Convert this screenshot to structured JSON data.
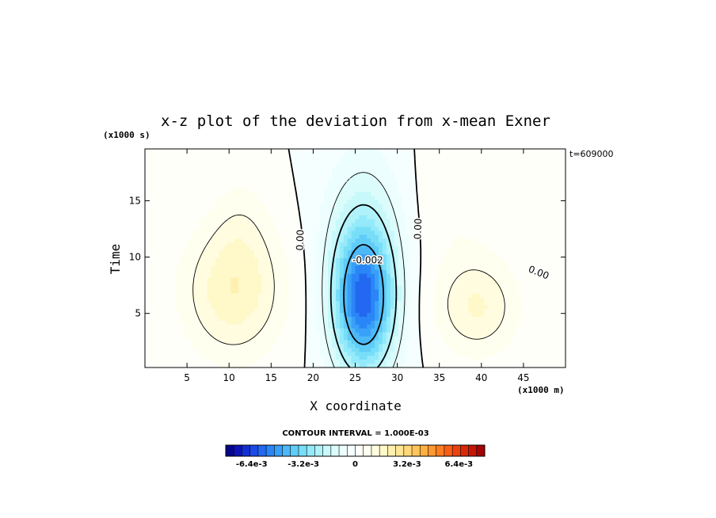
{
  "chart_data": {
    "type": "heatmap",
    "title": "x-z plot of the deviation from x-mean Exner",
    "xlabel": "X coordinate",
    "ylabel": "Time",
    "x_unit": "(x1000 m)",
    "y_unit": "(x1000 s)",
    "time_label": "t=609000",
    "xlim": [
      0,
      50
    ],
    "ylim": [
      0.2,
      19.6
    ],
    "x_ticks": [
      5,
      10,
      15,
      20,
      25,
      30,
      35,
      40,
      45
    ],
    "y_ticks": [
      5,
      10,
      15
    ],
    "contour_labels": [
      {
        "text": "0.00",
        "x": 18.5,
        "y": 11.5,
        "rotate": -88
      },
      {
        "text": "-0.002",
        "x": 26.5,
        "y": 9.7,
        "rotate": 0
      },
      {
        "text": "0.00",
        "x": 32.5,
        "y": 12.5,
        "rotate": -88
      },
      {
        "text": "0.00",
        "x": 46.8,
        "y": 8.6,
        "rotate": 22
      }
    ],
    "field_features": [
      {
        "name": "warm-left",
        "x": 10.5,
        "y": 7.0,
        "sx": 4.2,
        "sy": 4.2,
        "amp": 0.0019
      },
      {
        "name": "warm-left-upper",
        "x": 11.5,
        "y": 13.0,
        "sx": 2.5,
        "sy": 3.5,
        "amp": 0.0005
      },
      {
        "name": "cold-center",
        "x": 26.0,
        "y": 6.0,
        "sx": 2.6,
        "sy": 4.5,
        "amp": -0.0055
      },
      {
        "name": "cold-center-upper",
        "x": 26.0,
        "y": 13.0,
        "sx": 3.3,
        "sy": 5.0,
        "amp": -0.0012
      },
      {
        "name": "warm-right",
        "x": 39.5,
        "y": 5.5,
        "sx": 3.5,
        "sy": 3.0,
        "amp": 0.0015
      },
      {
        "name": "warm-right-upper",
        "x": 37.0,
        "y": 14.0,
        "sx": 4.0,
        "sy": 5.0,
        "amp": 0.0004
      }
    ],
    "colorbar": {
      "contour_interval": "CONTOUR INTERVAL = 1.000E-03",
      "tick_labels": [
        "-6.4e-3",
        "-3.2e-3",
        "0",
        "3.2e-3",
        "6.4e-3"
      ],
      "tick_values": [
        -0.0064,
        -0.0032,
        0,
        0.0032,
        0.0064
      ],
      "range": [
        -0.008,
        0.008
      ],
      "colors": [
        "#06068c",
        "#0c14b4",
        "#1230d2",
        "#1c4ae6",
        "#2268f0",
        "#2a86f6",
        "#38a0f8",
        "#4cb8f8",
        "#60ccf8",
        "#78def8",
        "#94eafa",
        "#b0f2fa",
        "#c8f8fa",
        "#dcfcfc",
        "#ecfefe",
        "#f6ffff",
        "#fffffa",
        "#fffff0",
        "#fffce0",
        "#fff8c8",
        "#fff0b0",
        "#ffe696",
        "#ffd878",
        "#ffc45c",
        "#ffb042",
        "#ff9830",
        "#ff7c22",
        "#f85e18",
        "#ea4210",
        "#d82a0a",
        "#c41606",
        "#a40404"
      ]
    }
  }
}
